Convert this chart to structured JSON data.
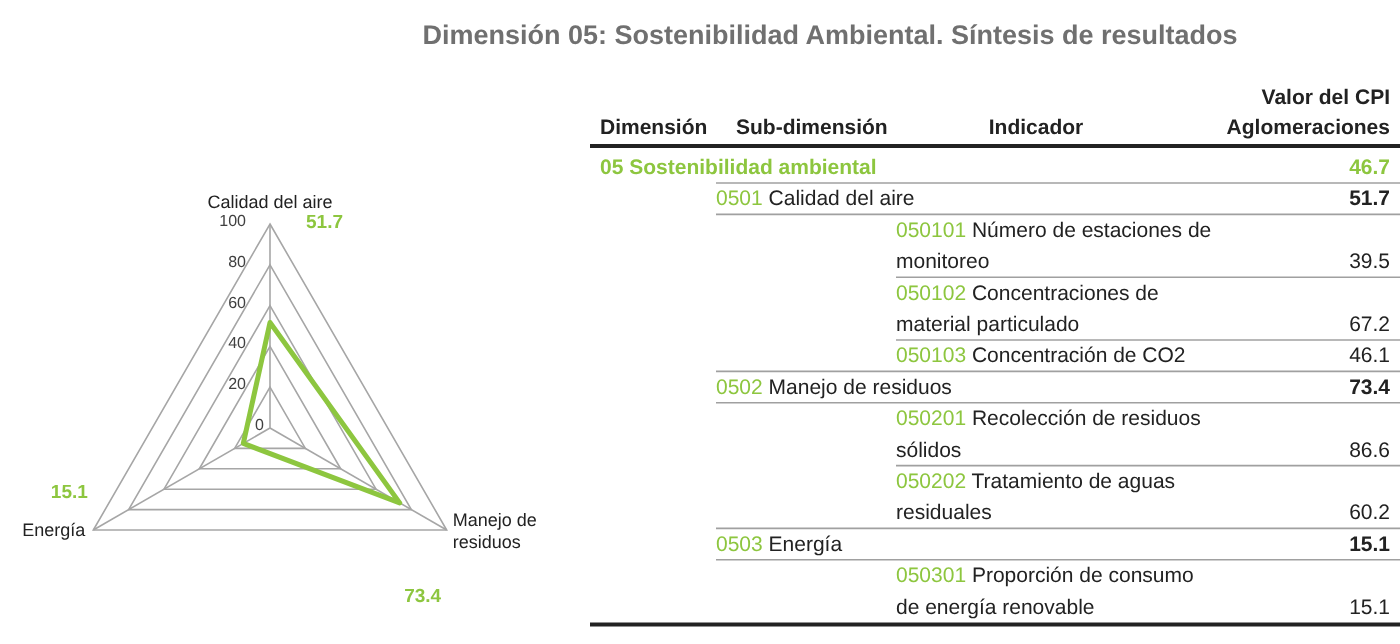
{
  "chart_data": [
    {
      "type": "radar",
      "categories": [
        "Calidad del aire",
        "Manejo de residuos",
        "Energía"
      ],
      "series": [
        {
          "color": "#8dc63f",
          "values": [
            51.7,
            73.4,
            15.1
          ]
        }
      ],
      "annotations": [
        "51.7",
        "73.4",
        "15.1"
      ],
      "ylim": [
        0,
        100
      ],
      "yticks": [
        0,
        20,
        40,
        60,
        80,
        100
      ],
      "grid": true
    },
    {
      "type": "other",
      "title": "Dimensión 05: Sostenibilidad Ambiental. Síntesis de resultados",
      "annotations": [
        "Dimensión",
        "Sub-dimensión",
        "Indicador",
        "Valor del CPI Aglomeraciones",
        "05 Sostenibilidad ambiental",
        "46.7",
        "0501 Calidad del aire",
        "51.7",
        "050101 Número de estaciones de monitoreo",
        "39.5",
        "050102 Concentraciones de material particulado",
        "67.2",
        "050103 Concentración de CO2",
        "46.1",
        "0502 Manejo de residuos",
        "73.4",
        "050201 Recolección de residuos sólidos",
        "86.6",
        "050202 Tratamiento de aguas residuales",
        "60.2",
        "0503 Energía",
        "15.1",
        "050301 Proporción de consumo de energía renovable",
        "15.1"
      ]
    }
  ]
}
